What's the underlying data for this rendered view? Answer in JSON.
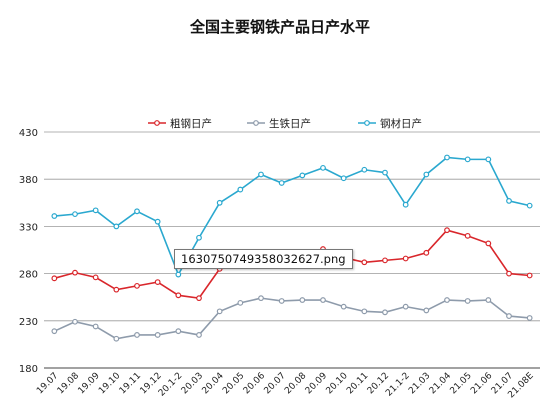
{
  "chart_data": {
    "type": "line",
    "title": "全国主要钢铁产品日产水平",
    "categories": [
      "19.07",
      "19.08",
      "19.09",
      "19.10",
      "19.11",
      "19.12",
      "20.1-2",
      "20.03",
      "20.04",
      "20.05",
      "20.06",
      "20.07",
      "20.08",
      "20.09",
      "20.10",
      "20.11",
      "20.12",
      "21.1-2",
      "21.03",
      "21.04",
      "21.05",
      "21.06",
      "21.07",
      "21.08E"
    ],
    "ylim": [
      180,
      430
    ],
    "yticks": [
      180,
      230,
      280,
      330,
      380,
      430
    ],
    "grid": true,
    "legend_position": "top-center",
    "series": [
      {
        "name": "粗钢日产",
        "color": "#d9262b",
        "values": [
          275,
          281,
          276,
          263,
          267,
          271,
          257,
          254,
          285,
          290,
          292,
          294,
          299,
          306,
          297,
          292,
          294,
          296,
          302,
          326,
          320,
          312,
          280,
          278
        ]
      },
      {
        "name": "生铁日产",
        "color": "#8e9bab",
        "values": [
          219,
          229,
          224,
          211,
          215,
          215,
          219,
          215,
          240,
          249,
          254,
          251,
          252,
          252,
          245,
          240,
          239,
          245,
          241,
          252,
          251,
          252,
          235,
          233
        ]
      },
      {
        "name": "钢材日产",
        "color": "#2aa8cf",
        "values": [
          341,
          343,
          347,
          330,
          346,
          335,
          279,
          318,
          355,
          369,
          385,
          376,
          384,
          392,
          381,
          390,
          387,
          353,
          385,
          403,
          401,
          401,
          357,
          352
        ]
      }
    ]
  },
  "tooltip": {
    "text": "1630750749358032627.png"
  }
}
